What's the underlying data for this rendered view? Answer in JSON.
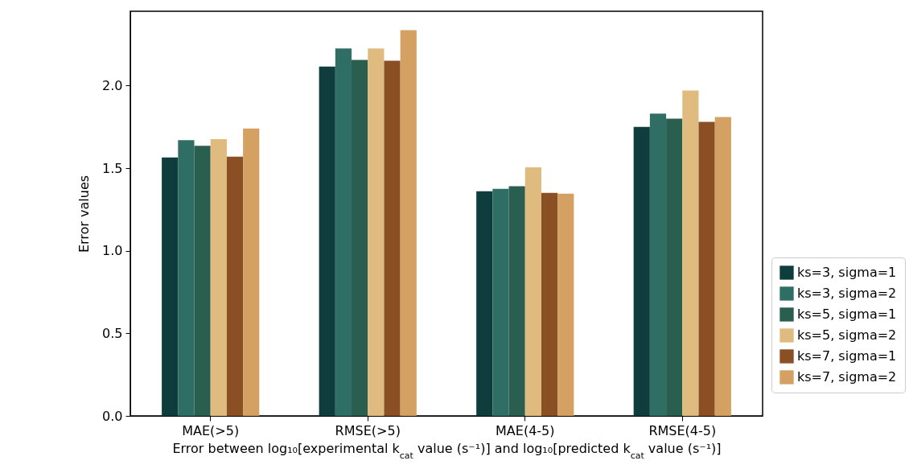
{
  "chart_data": {
    "type": "bar",
    "xlabel": "Error between log₁₀[experimental k$_{cat}$ value (s⁻¹)] and log₁₀[predicted k$_{cat}$ value (s⁻¹)]",
    "ylabel": "Error values",
    "categories": [
      "MAE(>5)",
      "RMSE(>5)",
      "MAE(4-5)",
      "RMSE(4-5)"
    ],
    "series": [
      {
        "name": "ks=3, sigma=1",
        "color": "#0f3d3e",
        "values": [
          1.565,
          2.115,
          1.36,
          1.75
        ]
      },
      {
        "name": "ks=3, sigma=2",
        "color": "#2e6e64",
        "values": [
          1.67,
          2.225,
          1.375,
          1.83
        ]
      },
      {
        "name": "ks=5, sigma=1",
        "color": "#2a5e4e",
        "values": [
          1.635,
          2.155,
          1.39,
          1.8
        ]
      },
      {
        "name": "ks=5, sigma=2",
        "color": "#e0bb80",
        "values": [
          1.675,
          2.225,
          1.505,
          1.97
        ]
      },
      {
        "name": "ks=7, sigma=1",
        "color": "#8b4f24",
        "values": [
          1.57,
          2.15,
          1.35,
          1.78
        ]
      },
      {
        "name": "ks=7, sigma=2",
        "color": "#d4a162",
        "values": [
          1.74,
          2.335,
          1.345,
          1.81
        ]
      }
    ],
    "ylim": [
      0,
      2.45
    ],
    "yticks": [
      {
        "value": 0,
        "label": "0.0"
      },
      0.5,
      {
        "value": 1,
        "label": "1.0"
      },
      1.5,
      {
        "value": 2,
        "label": "2.0"
      }
    ],
    "grid": false,
    "legend": "bottom right"
  }
}
